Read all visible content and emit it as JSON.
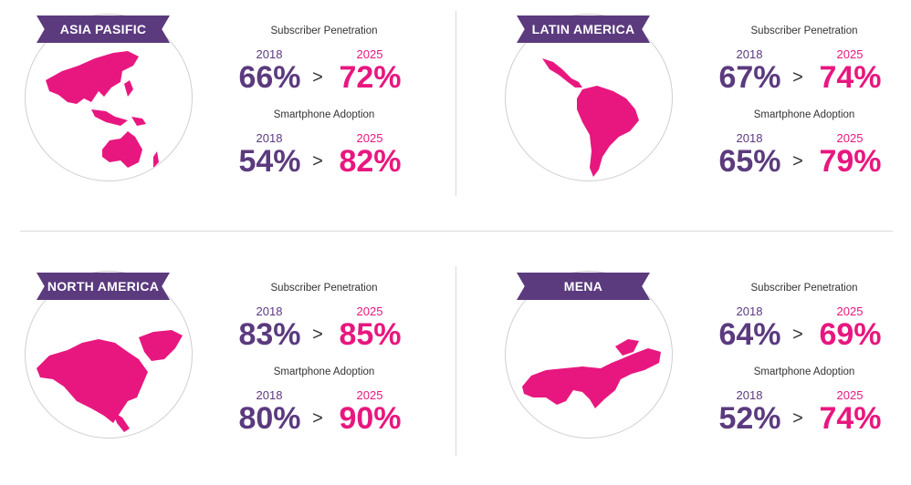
{
  "colors": {
    "brand_purple": "#5b3a7e",
    "brand_pink": "#e8177f",
    "divider": "#d9d9d9"
  },
  "regions": [
    {
      "name": "ASIA PASIFIC",
      "map_icon": "asia-pacific-map",
      "metrics": [
        {
          "title": "Subscriber Penetration",
          "year_from": "2018",
          "year_to": "2025",
          "value_from": "66%",
          "value_to": "72%"
        },
        {
          "title": "Smartphone Adoption",
          "year_from": "2018",
          "year_to": "2025",
          "value_from": "54%",
          "value_to": "82%"
        }
      ]
    },
    {
      "name": "LATIN AMERICA",
      "map_icon": "latin-america-map",
      "metrics": [
        {
          "title": "Subscriber Penetration",
          "year_from": "2018",
          "year_to": "2025",
          "value_from": "67%",
          "value_to": "74%"
        },
        {
          "title": "Smartphone Adoption",
          "year_from": "2018",
          "year_to": "2025",
          "value_from": "65%",
          "value_to": "79%"
        }
      ]
    },
    {
      "name": "NORTH AMERICA",
      "map_icon": "north-america-map",
      "metrics": [
        {
          "title": "Subscriber Penetration",
          "year_from": "2018",
          "year_to": "2025",
          "value_from": "83%",
          "value_to": "85%"
        },
        {
          "title": "Smartphone Adoption",
          "year_from": "2018",
          "year_to": "2025",
          "value_from": "80%",
          "value_to": "90%"
        }
      ]
    },
    {
      "name": "MENA",
      "map_icon": "mena-map",
      "metrics": [
        {
          "title": "Subscriber Penetration",
          "year_from": "2018",
          "year_to": "2025",
          "value_from": "64%",
          "value_to": "69%"
        },
        {
          "title": "Smartphone Adoption",
          "year_from": "2018",
          "year_to": "2025",
          "value_from": "52%",
          "value_to": "74%"
        }
      ]
    }
  ]
}
